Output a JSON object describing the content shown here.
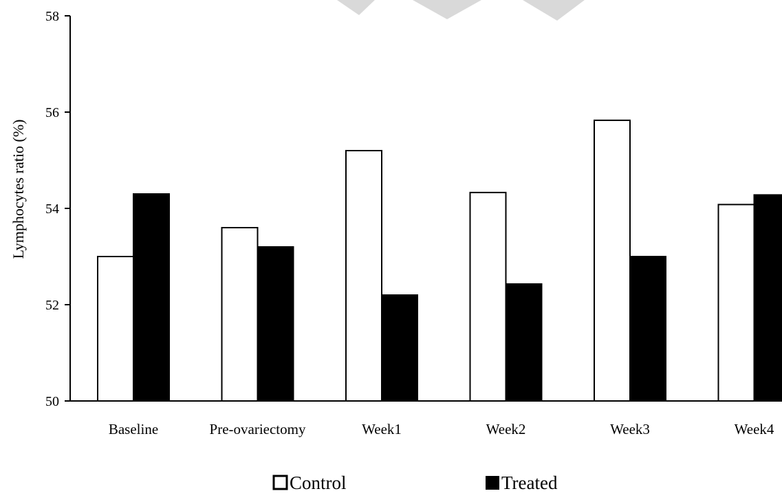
{
  "chart_data": {
    "type": "bar",
    "title": "",
    "xlabel": "",
    "ylabel": "Lymphocytes ratio (%)",
    "ylim": [
      50,
      58
    ],
    "yticks": [
      50,
      52,
      54,
      56,
      58
    ],
    "categories": [
      "Baseline",
      "Pre-ovariectomy",
      "Week1",
      "Week2",
      "Week3",
      "Week4"
    ],
    "series": [
      {
        "name": "Control",
        "values": [
          53.0,
          53.6,
          55.2,
          54.33,
          55.83,
          54.08
        ]
      },
      {
        "name": "Treated",
        "values": [
          54.3,
          53.2,
          52.2,
          52.43,
          53.0,
          54.28
        ]
      }
    ],
    "grid": false,
    "legend_position": "bottom",
    "colors": {
      "Control": "#ffffff",
      "Treated": "#000000",
      "outline": "#000000"
    }
  }
}
